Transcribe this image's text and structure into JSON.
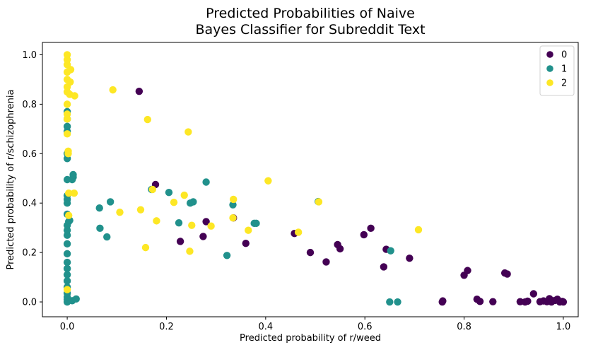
{
  "chart_data": {
    "type": "scatter",
    "title": [
      "Predicted Probabilities of Naive",
      "Bayes Classifier for Subreddit Text"
    ],
    "xlabel": "Predicted probability of r/weed",
    "ylabel": "Predicted probability of r/schizophrenia",
    "xlim": [
      -0.05,
      1.03
    ],
    "ylim": [
      -0.06,
      1.05
    ],
    "xticks": [
      0.0,
      0.2,
      0.4,
      0.6,
      0.8,
      1.0
    ],
    "yticks": [
      0.0,
      0.2,
      0.4,
      0.6,
      0.8,
      1.0
    ],
    "xtick_labels": [
      "0.0",
      "0.2",
      "0.4",
      "0.6",
      "0.8",
      "1.0"
    ],
    "ytick_labels": [
      "0.0",
      "0.2",
      "0.4",
      "0.6",
      "0.8",
      "1.0"
    ],
    "grid": false,
    "legend_position": "top-right",
    "series": [
      {
        "name": "0",
        "color": "#440154",
        "points": [
          [
            0.145,
            0.852
          ],
          [
            0.178,
            0.475
          ],
          [
            0.228,
            0.245
          ],
          [
            0.274,
            0.265
          ],
          [
            0.28,
            0.325
          ],
          [
            0.335,
            0.34
          ],
          [
            0.36,
            0.237
          ],
          [
            0.458,
            0.277
          ],
          [
            0.49,
            0.2
          ],
          [
            0.522,
            0.162
          ],
          [
            0.545,
            0.232
          ],
          [
            0.55,
            0.215
          ],
          [
            0.598,
            0.272
          ],
          [
            0.612,
            0.298
          ],
          [
            0.638,
            0.142
          ],
          [
            0.643,
            0.213
          ],
          [
            0.69,
            0.177
          ],
          [
            0.756,
            0.0
          ],
          [
            0.757,
            0.004
          ],
          [
            0.8,
            0.108
          ],
          [
            0.807,
            0.127
          ],
          [
            0.826,
            0.011
          ],
          [
            0.832,
            0.002
          ],
          [
            0.858,
            0.001
          ],
          [
            0.882,
            0.117
          ],
          [
            0.887,
            0.113
          ],
          [
            0.913,
            0.001
          ],
          [
            0.923,
            0.0
          ],
          [
            0.928,
            0.003
          ],
          [
            0.94,
            0.033
          ],
          [
            0.953,
            0.001
          ],
          [
            0.96,
            0.004
          ],
          [
            0.967,
            0.001
          ],
          [
            0.972,
            0.013
          ],
          [
            0.976,
            0.0
          ],
          [
            0.983,
            0.006
          ],
          [
            0.988,
            0.011
          ],
          [
            0.993,
            0.0
          ],
          [
            0.998,
            0.002
          ],
          [
            1.0,
            0.0
          ]
        ]
      },
      {
        "name": "1",
        "color": "#21918c",
        "points": [
          [
            0.0,
            0.0
          ],
          [
            0.0,
            0.01
          ],
          [
            0.0,
            0.02
          ],
          [
            0.0,
            0.035
          ],
          [
            0.0,
            0.06
          ],
          [
            0.0,
            0.085
          ],
          [
            0.0,
            0.11
          ],
          [
            0.0,
            0.135
          ],
          [
            0.0,
            0.16
          ],
          [
            0.0,
            0.195
          ],
          [
            0.0,
            0.235
          ],
          [
            0.0,
            0.27
          ],
          [
            0.0,
            0.29
          ],
          [
            0.0,
            0.31
          ],
          [
            0.003,
            0.325
          ],
          [
            0.0,
            0.355
          ],
          [
            0.0,
            0.4
          ],
          [
            0.0,
            0.415
          ],
          [
            0.0,
            0.43
          ],
          [
            0.0,
            0.495
          ],
          [
            0.0,
            0.58
          ],
          [
            0.0,
            0.6
          ],
          [
            0.0,
            0.69
          ],
          [
            0.0,
            0.71
          ],
          [
            0.0,
            0.74
          ],
          [
            0.0,
            0.77
          ],
          [
            0.005,
            0.33
          ],
          [
            0.01,
            0.005
          ],
          [
            0.01,
            0.495
          ],
          [
            0.012,
            0.505
          ],
          [
            0.012,
            0.515
          ],
          [
            0.018,
            0.012
          ],
          [
            0.065,
            0.38
          ],
          [
            0.066,
            0.298
          ],
          [
            0.08,
            0.263
          ],
          [
            0.087,
            0.405
          ],
          [
            0.17,
            0.455
          ],
          [
            0.205,
            0.443
          ],
          [
            0.225,
            0.32
          ],
          [
            0.248,
            0.4
          ],
          [
            0.254,
            0.405
          ],
          [
            0.28,
            0.485
          ],
          [
            0.322,
            0.188
          ],
          [
            0.334,
            0.393
          ],
          [
            0.377,
            0.318
          ],
          [
            0.381,
            0.318
          ],
          [
            0.506,
            0.406
          ],
          [
            0.65,
            0.0
          ],
          [
            0.652,
            0.207
          ],
          [
            0.666,
            0.0
          ]
        ]
      },
      {
        "name": "2",
        "color": "#fde725",
        "points": [
          [
            0.0,
            0.05
          ],
          [
            0.0,
            0.68
          ],
          [
            0.0,
            0.74
          ],
          [
            0.0,
            0.76
          ],
          [
            0.0,
            0.8
          ],
          [
            0.0,
            0.85
          ],
          [
            0.0,
            0.87
          ],
          [
            0.0,
            0.9
          ],
          [
            0.0,
            0.93
          ],
          [
            0.0,
            0.96
          ],
          [
            0.0,
            0.98
          ],
          [
            0.0,
            1.0
          ],
          [
            0.002,
            0.6
          ],
          [
            0.002,
            0.61
          ],
          [
            0.003,
            0.35
          ],
          [
            0.003,
            0.44
          ],
          [
            0.005,
            0.84
          ],
          [
            0.006,
            0.89
          ],
          [
            0.007,
            0.94
          ],
          [
            0.014,
            0.44
          ],
          [
            0.015,
            0.834
          ],
          [
            0.092,
            0.858
          ],
          [
            0.106,
            0.363
          ],
          [
            0.148,
            0.373
          ],
          [
            0.158,
            0.22
          ],
          [
            0.162,
            0.738
          ],
          [
            0.172,
            0.455
          ],
          [
            0.18,
            0.328
          ],
          [
            0.215,
            0.403
          ],
          [
            0.236,
            0.432
          ],
          [
            0.244,
            0.688
          ],
          [
            0.247,
            0.205
          ],
          [
            0.251,
            0.31
          ],
          [
            0.29,
            0.307
          ],
          [
            0.334,
            0.34
          ],
          [
            0.335,
            0.415
          ],
          [
            0.365,
            0.29
          ],
          [
            0.405,
            0.49
          ],
          [
            0.466,
            0.282
          ],
          [
            0.507,
            0.405
          ],
          [
            0.708,
            0.292
          ]
        ]
      }
    ]
  }
}
